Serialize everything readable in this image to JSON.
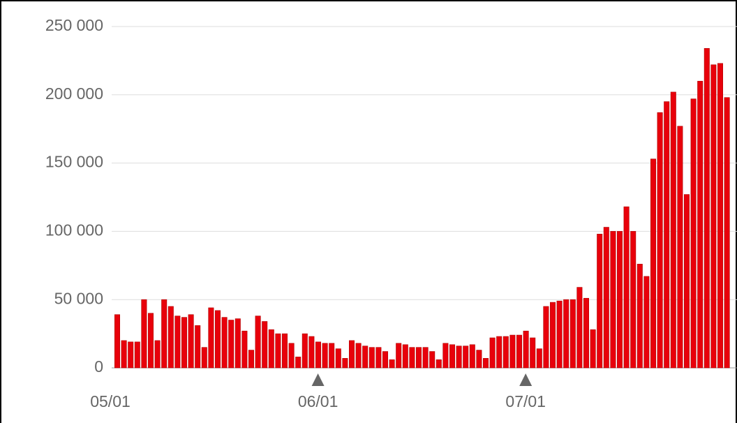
{
  "chart_data": {
    "type": "bar",
    "categories": [
      "05/01",
      null,
      null,
      null,
      null,
      null,
      null,
      null,
      null,
      null,
      null,
      null,
      null,
      null,
      null,
      null,
      null,
      null,
      null,
      null,
      null,
      null,
      null,
      null,
      null,
      null,
      null,
      null,
      null,
      null,
      null,
      "06/01",
      null,
      null,
      null,
      null,
      null,
      null,
      null,
      null,
      null,
      null,
      null,
      null,
      null,
      null,
      null,
      null,
      null,
      null,
      null,
      null,
      null,
      null,
      null,
      null,
      null,
      null,
      null,
      null,
      null,
      null,
      "07/01",
      null,
      null,
      null,
      null,
      null,
      null,
      null,
      null,
      null,
      null,
      null,
      null,
      null,
      null,
      null,
      null,
      null,
      null,
      null,
      null,
      null,
      null,
      null,
      null,
      null,
      null,
      null,
      null,
      null
    ],
    "values": [
      39000,
      20000,
      19000,
      19000,
      50000,
      40000,
      20000,
      50000,
      45000,
      38000,
      37000,
      39000,
      31000,
      15000,
      44000,
      42000,
      37000,
      35000,
      36000,
      27000,
      13000,
      38000,
      34000,
      28000,
      25000,
      25000,
      18000,
      8000,
      25000,
      23000,
      19000,
      18000,
      18000,
      14000,
      7000,
      20000,
      18000,
      16000,
      15000,
      15000,
      12000,
      6000,
      18000,
      17000,
      15000,
      15000,
      15000,
      12000,
      6000,
      18000,
      17000,
      16000,
      16000,
      17000,
      13000,
      7000,
      22000,
      23000,
      23000,
      24000,
      24000,
      27000,
      22000,
      14000,
      45000,
      48000,
      49000,
      50000,
      50000,
      59000,
      51000,
      28000,
      98000,
      103000,
      100000,
      100000,
      118000,
      100000,
      76000,
      67000,
      153000,
      187000,
      195000,
      202000,
      177000,
      127000,
      197000,
      210000,
      234000,
      222000,
      223000,
      198000
    ],
    "color": "#e8000b",
    "ylim": [
      0,
      250000
    ],
    "yticks": [
      0,
      {
        "value": 50000,
        "label": "50 000"
      },
      {
        "value": 100000,
        "label": "100 000"
      },
      {
        "value": 150000,
        "label": "150 000"
      },
      {
        "value": 200000,
        "label": "200 000"
      },
      {
        "value": 250000,
        "label": "250 000"
      }
    ],
    "grid": true
  }
}
